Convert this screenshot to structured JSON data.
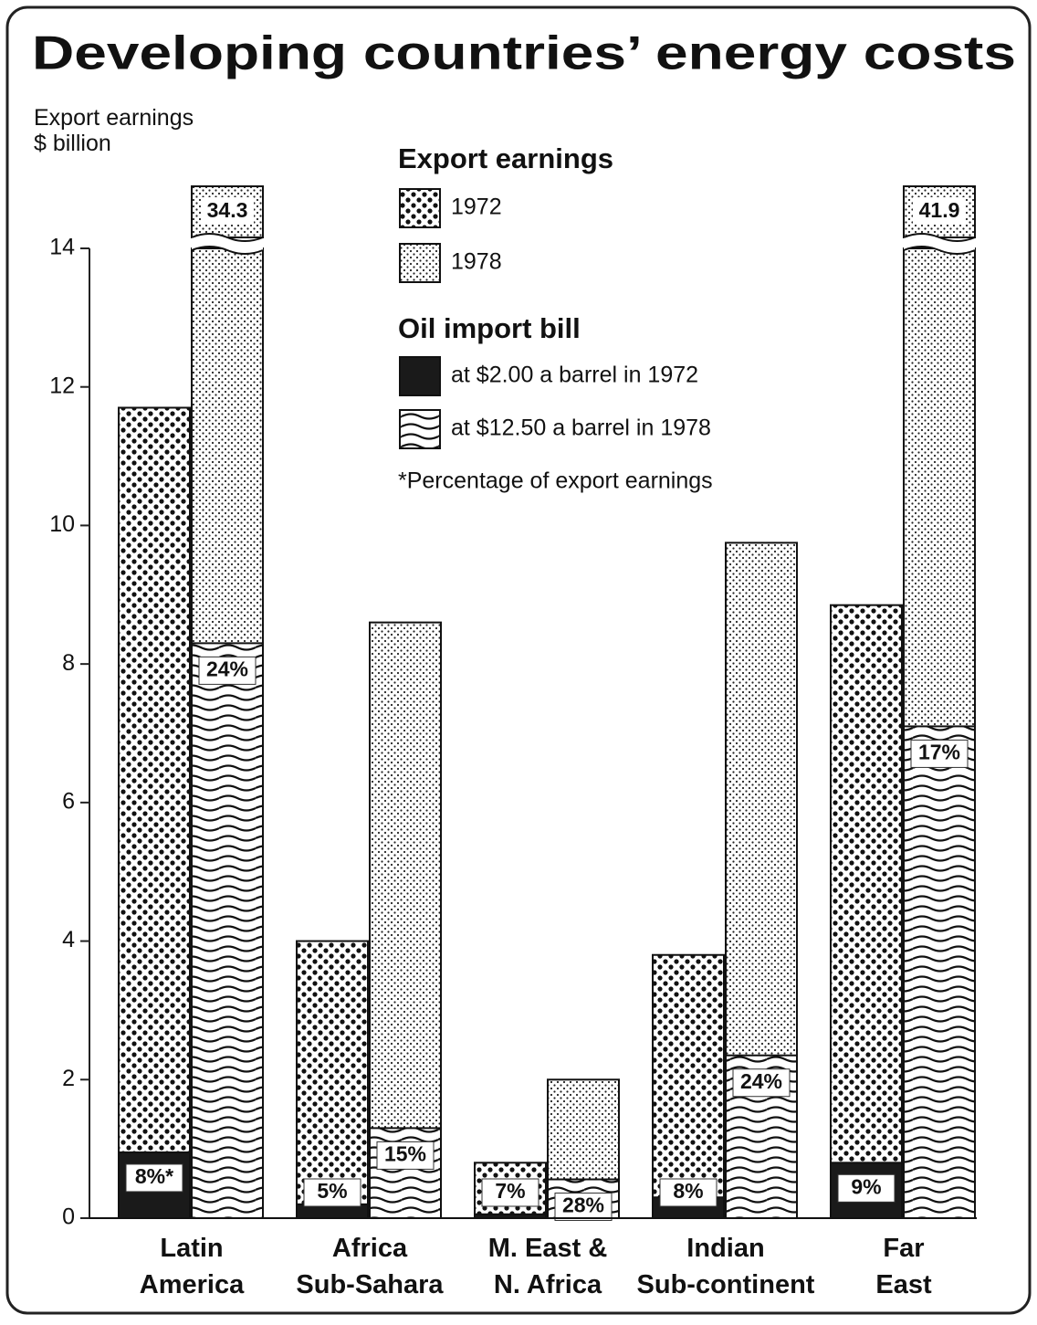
{
  "chart_data": {
    "type": "bar",
    "title": "Developing countries’ energy costs",
    "ylabel": "Export earnings\n$ billion",
    "categories": [
      "Latin\nAmerica",
      "Africa\nSub-Sahara",
      "M. East &\nN. Africa",
      "Indian\nSub-continent",
      "Far\nEast"
    ],
    "legend_groups": [
      {
        "title": "Export earnings",
        "series": [
          0,
          1
        ]
      },
      {
        "title": "Oil import bill",
        "series": [
          2,
          3
        ]
      }
    ],
    "note": "*Percentage of export earnings",
    "series": [
      {
        "name": "1972",
        "pattern": "coarse-dots",
        "color": "#111111",
        "values": [
          11.7,
          4.0,
          0.8,
          3.8,
          8.85
        ]
      },
      {
        "name": "1978",
        "pattern": "fine-dots",
        "color": "#111111",
        "values": [
          34.3,
          8.6,
          2.0,
          9.75,
          41.9
        ],
        "value_labels": [
          "34.3",
          null,
          null,
          null,
          "41.9"
        ]
      },
      {
        "name": "at $2.00 a barrel in 1972",
        "pattern": "solid",
        "color": "#1a1a1a",
        "values": [
          0.95,
          0.2,
          0.056,
          0.3,
          0.8
        ],
        "labels": [
          "8%*",
          "5%",
          "7%",
          "8%",
          "9%"
        ]
      },
      {
        "name": "at $12.50 a barrel in 1978",
        "pattern": "waves",
        "color": "#111111",
        "values": [
          8.3,
          1.3,
          0.56,
          2.35,
          7.1
        ],
        "labels": [
          "24%",
          "15%",
          "28%",
          "24%",
          "17%"
        ]
      }
    ],
    "ylim": [
      0,
      14
    ],
    "yticks": [
      0,
      2,
      4,
      6,
      8,
      10,
      12,
      14
    ]
  }
}
